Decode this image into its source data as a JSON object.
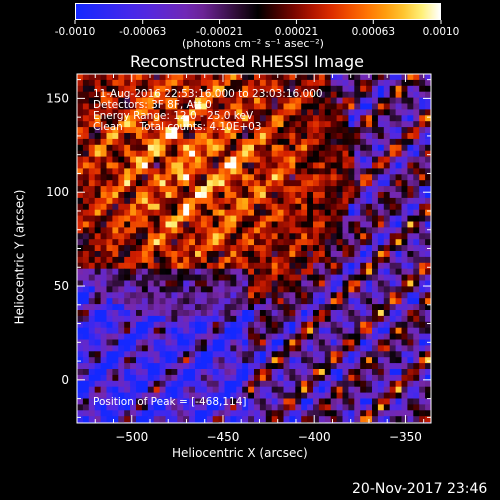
{
  "colorbar": {
    "tick_labels": [
      "-0.0010",
      "-0.00063",
      "-0.00021",
      "0.00021",
      "0.00063",
      "0.0010"
    ],
    "tick_values": [
      -0.001,
      -0.00063,
      -0.00021,
      0.00021,
      0.00063,
      0.001
    ],
    "units": "(photons cm⁻² s⁻¹ asec⁻²)",
    "range": [
      -0.001,
      0.001
    ]
  },
  "chart_data": {
    "type": "heatmap",
    "title": "Reconstructed RHESSI Image",
    "xlabel": "Heliocentric X (arcsec)",
    "ylabel": "Heliocentric Y (arcsec)",
    "xlim": [
      -530,
      -336
    ],
    "ylim": [
      -23,
      163
    ],
    "x_ticks": [
      -500,
      -450,
      -400,
      -350
    ],
    "y_ticks": [
      0,
      50,
      100,
      150
    ],
    "x_tick_labels": [
      "−500",
      "−450",
      "−400",
      "−350"
    ],
    "y_tick_labels": [
      "0",
      "50",
      "100",
      "150"
    ],
    "peak": [
      -468,
      114
    ],
    "annotations": {
      "time": "11-Aug-2016 22:53:16.000 to 23:03:16.000",
      "detectors": "Detectors: 3F 8F, Att 0",
      "energy": "Energy Range: 12.0 - 25.0 keV",
      "clean": "Clean     Total counts: 4.10E+03",
      "peak_text": "Position of Peak = [-468,114]"
    },
    "colormap": "rainbow-like: blue/purple (negative) to black, red, orange, yellow, white (positive)"
  },
  "footer": {
    "date": "20-Nov-2017 23:46"
  }
}
